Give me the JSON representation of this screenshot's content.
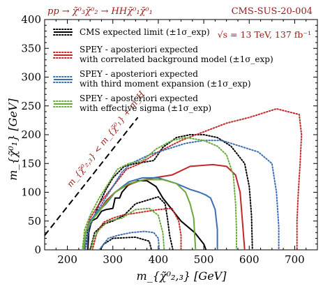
{
  "header": {
    "left_title": "pp → χ̃⁰₃χ̃⁰₂ → HHχ̃⁰₁χ̃⁰₁",
    "right_title": "CMS-SUS-20-004",
    "energy_label": "√s = 13 TeV,  137 fb⁻¹"
  },
  "colors": {
    "dark_red": "#9b1b1b",
    "red": "#c0282a",
    "blue": "#3b6fb4",
    "green": "#6aaa3a",
    "black": "#000000"
  },
  "chart_data": {
    "type": "line",
    "xlabel": "m_{χ̃⁰₂,₃} [GeV]",
    "ylabel": "m_{χ̃⁰₁} [GeV]",
    "xlim": [
      150,
      750
    ],
    "ylim": [
      0,
      400
    ],
    "x_ticks": [
      "200",
      "300",
      "400",
      "500",
      "600",
      "700"
    ],
    "y_ticks": [
      "0",
      "50",
      "100",
      "150",
      "200",
      "250",
      "300",
      "350",
      "400"
    ],
    "kinematic_line_label": "m_{χ̃⁰₂,₃} < m_{χ̃⁰₁} + m_H",
    "kinematic_line": [
      [
        150,
        25
      ],
      [
        355,
        230
      ]
    ],
    "legend": [
      {
        "label": "CMS expected limit (±1σ_exp)",
        "label2": "",
        "color": "#000000"
      },
      {
        "label": "SPEY - aposteriori expected",
        "label2": "with correlated background model (±1σ_exp)",
        "color": "#c0282a"
      },
      {
        "label": "SPEY - aposteriori expected",
        "label2": "with third moment expansion (±1σ_exp)",
        "color": "#3b6fb4"
      },
      {
        "label": "SPEY - aposteriori expected",
        "label2": "with effective sigma (±1σ_exp)",
        "color": "#6aaa3a"
      }
    ],
    "series": [
      {
        "color": "#000000",
        "style": "solid",
        "points": [
          [
            245,
            0
          ],
          [
            247,
            30
          ],
          [
            253,
            50
          ],
          [
            265,
            55
          ],
          [
            275,
            67
          ],
          [
            285,
            70
          ],
          [
            300,
            72
          ],
          [
            305,
            90
          ],
          [
            315,
            90
          ],
          [
            320,
            100
          ],
          [
            333,
            112
          ],
          [
            355,
            120
          ],
          [
            375,
            120
          ],
          [
            395,
            110
          ],
          [
            410,
            90
          ],
          [
            430,
            70
          ],
          [
            450,
            50
          ],
          [
            480,
            30
          ],
          [
            500,
            10
          ],
          [
            505,
            0
          ]
        ]
      },
      {
        "color": "#000000",
        "style": "dotted",
        "points": [
          [
            240,
            0
          ],
          [
            245,
            35
          ],
          [
            255,
            50
          ],
          [
            270,
            80
          ],
          [
            285,
            105
          ],
          [
            300,
            125
          ],
          [
            325,
            145
          ],
          [
            350,
            150
          ],
          [
            390,
            155
          ],
          [
            410,
            178
          ],
          [
            440,
            195
          ],
          [
            470,
            200
          ],
          [
            500,
            200
          ],
          [
            530,
            195
          ],
          [
            560,
            180
          ],
          [
            590,
            150
          ],
          [
            600,
            110
          ],
          [
            605,
            60
          ],
          [
            607,
            0
          ]
        ]
      },
      {
        "color": "#000000",
        "style": "dotted",
        "points": [
          [
            250,
            0
          ],
          [
            260,
            30
          ],
          [
            280,
            45
          ],
          [
            300,
            50
          ],
          [
            325,
            60
          ],
          [
            350,
            80
          ],
          [
            400,
            92
          ],
          [
            415,
            80
          ],
          [
            420,
            55
          ],
          [
            425,
            25
          ],
          [
            432,
            0
          ]
        ]
      },
      {
        "color": "#000000",
        "style": "dotted",
        "points": [
          [
            272,
            0
          ],
          [
            280,
            10
          ],
          [
            300,
            20
          ],
          [
            350,
            22
          ],
          [
            380,
            15
          ],
          [
            385,
            0
          ]
        ]
      },
      {
        "color": "#c0282a",
        "style": "solid",
        "points": [
          [
            237,
            0
          ],
          [
            240,
            30
          ],
          [
            250,
            50
          ],
          [
            265,
            62
          ],
          [
            285,
            85
          ],
          [
            305,
            100
          ],
          [
            330,
            112
          ],
          [
            360,
            120
          ],
          [
            390,
            125
          ],
          [
            430,
            130
          ],
          [
            470,
            145
          ],
          [
            520,
            148
          ],
          [
            550,
            145
          ],
          [
            570,
            130
          ],
          [
            580,
            100
          ],
          [
            585,
            50
          ],
          [
            590,
            0
          ]
        ]
      },
      {
        "color": "#c0282a",
        "style": "dotted",
        "points": [
          [
            235,
            0
          ],
          [
            240,
            30
          ],
          [
            250,
            55
          ],
          [
            270,
            80
          ],
          [
            300,
            110
          ],
          [
            330,
            140
          ],
          [
            360,
            150
          ],
          [
            400,
            170
          ],
          [
            450,
            190
          ],
          [
            500,
            205
          ],
          [
            550,
            220
          ],
          [
            600,
            230
          ],
          [
            660,
            245
          ],
          [
            710,
            235
          ],
          [
            715,
            200
          ],
          [
            712,
            150
          ],
          [
            708,
            100
          ],
          [
            705,
            50
          ],
          [
            705,
            0
          ]
        ]
      },
      {
        "color": "#c0282a",
        "style": "dotted",
        "points": [
          [
            255,
            0
          ],
          [
            265,
            30
          ],
          [
            280,
            48
          ],
          [
            300,
            55
          ],
          [
            320,
            60
          ],
          [
            360,
            65
          ],
          [
            400,
            70
          ],
          [
            430,
            72
          ],
          [
            445,
            50
          ],
          [
            450,
            25
          ],
          [
            450,
            0
          ]
        ]
      },
      {
        "color": "#3b6fb4",
        "style": "solid",
        "points": [
          [
            237,
            0
          ],
          [
            240,
            30
          ],
          [
            250,
            50
          ],
          [
            265,
            65
          ],
          [
            285,
            80
          ],
          [
            305,
            100
          ],
          [
            335,
            118
          ],
          [
            365,
            125
          ],
          [
            400,
            125
          ],
          [
            440,
            115
          ],
          [
            470,
            105
          ],
          [
            490,
            100
          ],
          [
            505,
            95
          ],
          [
            515,
            90
          ],
          [
            525,
            70
          ],
          [
            530,
            35
          ],
          [
            530,
            0
          ]
        ]
      },
      {
        "color": "#3b6fb4",
        "style": "dotted",
        "points": [
          [
            240,
            0
          ],
          [
            248,
            40
          ],
          [
            260,
            60
          ],
          [
            280,
            85
          ],
          [
            300,
            110
          ],
          [
            320,
            135
          ],
          [
            340,
            150
          ],
          [
            380,
            165
          ],
          [
            420,
            175
          ],
          [
            460,
            185
          ],
          [
            500,
            190
          ],
          [
            540,
            190
          ],
          [
            580,
            180
          ],
          [
            620,
            170
          ],
          [
            650,
            150
          ],
          [
            660,
            100
          ],
          [
            665,
            40
          ],
          [
            665,
            0
          ]
        ]
      },
      {
        "color": "#3b6fb4",
        "style": "dotted",
        "points": [
          [
            270,
            0
          ],
          [
            290,
            20
          ],
          [
            310,
            25
          ],
          [
            340,
            30
          ],
          [
            370,
            32
          ],
          [
            390,
            30
          ],
          [
            400,
            20
          ],
          [
            402,
            0
          ]
        ]
      },
      {
        "color": "#6aaa3a",
        "style": "solid",
        "points": [
          [
            235,
            0
          ],
          [
            240,
            30
          ],
          [
            250,
            48
          ],
          [
            265,
            62
          ],
          [
            285,
            82
          ],
          [
            305,
            100
          ],
          [
            335,
            115
          ],
          [
            370,
            122
          ],
          [
            410,
            122
          ],
          [
            440,
            115
          ],
          [
            460,
            100
          ],
          [
            470,
            80
          ],
          [
            478,
            55
          ],
          [
            480,
            25
          ],
          [
            482,
            0
          ]
        ]
      },
      {
        "color": "#6aaa3a",
        "style": "dotted",
        "points": [
          [
            233,
            0
          ],
          [
            238,
            35
          ],
          [
            250,
            60
          ],
          [
            270,
            90
          ],
          [
            290,
            115
          ],
          [
            310,
            140
          ],
          [
            335,
            150
          ],
          [
            365,
            155
          ],
          [
            395,
            175
          ],
          [
            430,
            190
          ],
          [
            460,
            195
          ],
          [
            500,
            190
          ],
          [
            530,
            180
          ],
          [
            550,
            165
          ],
          [
            565,
            130
          ],
          [
            570,
            80
          ],
          [
            572,
            35
          ],
          [
            572,
            0
          ]
        ]
      },
      {
        "color": "#6aaa3a",
        "style": "dotted",
        "points": [
          [
            252,
            0
          ],
          [
            258,
            20
          ],
          [
            270,
            35
          ],
          [
            290,
            50
          ],
          [
            320,
            55
          ],
          [
            350,
            70
          ],
          [
            380,
            72
          ],
          [
            400,
            60
          ],
          [
            410,
            30
          ],
          [
            413,
            0
          ]
        ]
      }
    ]
  }
}
